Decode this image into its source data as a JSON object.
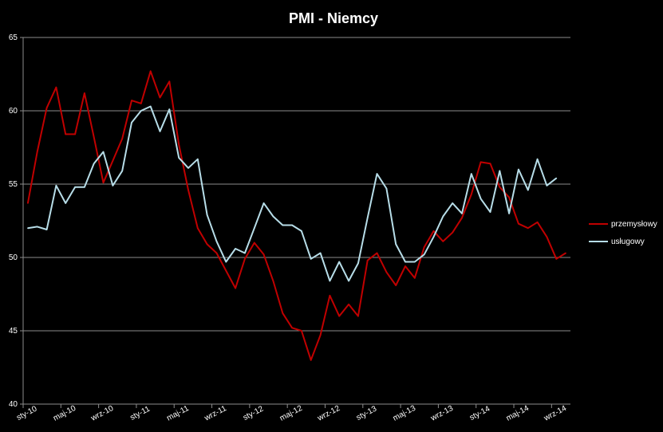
{
  "chart_data": {
    "type": "line",
    "title": "PMI - Niemcy",
    "ylim": [
      40,
      65
    ],
    "yticks": [
      40,
      45,
      50,
      55,
      60,
      65
    ],
    "grid": true,
    "legend_position": "right",
    "x": [
      "sty-10",
      "lut-10",
      "mar-10",
      "kwi-10",
      "maj-10",
      "cze-10",
      "lip-10",
      "sie-10",
      "wrz-10",
      "paź-10",
      "lis-10",
      "gru-10",
      "sty-11",
      "lut-11",
      "mar-11",
      "kwi-11",
      "maj-11",
      "cze-11",
      "lip-11",
      "sie-11",
      "wrz-11",
      "paź-11",
      "lis-11",
      "gru-11",
      "sty-12",
      "lut-12",
      "mar-12",
      "kwi-12",
      "maj-12",
      "cze-12",
      "lip-12",
      "sie-12",
      "wrz-12",
      "paź-12",
      "lis-12",
      "gru-12",
      "sty-13",
      "lut-13",
      "mar-13",
      "kwi-13",
      "maj-13",
      "cze-13",
      "lip-13",
      "sie-13",
      "wrz-13",
      "paź-13",
      "lis-13",
      "gru-13",
      "sty-14",
      "lut-14",
      "mar-14",
      "kwi-14",
      "maj-14",
      "cze-14",
      "lip-14",
      "sie-14",
      "wrz-14",
      "paź-14"
    ],
    "x_tick_labels": [
      "sty-10",
      "maj-10",
      "wrz-10",
      "sty-11",
      "maj-11",
      "wrz-11",
      "sty-12",
      "maj-12",
      "wrz-12",
      "sty-13",
      "maj-13",
      "wrz-13",
      "sty-14",
      "maj-14",
      "wrz-14"
    ],
    "series": [
      {
        "name": "przemysłowy",
        "color": "#c00000",
        "values": [
          53.7,
          57.2,
          60.2,
          61.6,
          58.4,
          58.4,
          61.2,
          58.2,
          55.1,
          56.6,
          58.1,
          60.7,
          60.5,
          62.7,
          60.9,
          62.0,
          57.7,
          54.6,
          52.0,
          50.9,
          50.3,
          49.1,
          47.9,
          49.9,
          51.0,
          50.2,
          48.4,
          46.2,
          45.2,
          45.0,
          43.0,
          44.7,
          47.4,
          46.0,
          46.8,
          46.0,
          49.8,
          50.3,
          49.0,
          48.1,
          49.4,
          48.6,
          50.7,
          51.8,
          51.1,
          51.7,
          52.7,
          54.3,
          56.5,
          56.4,
          54.8,
          54.1,
          52.3,
          52.0,
          52.4,
          51.4,
          49.9,
          50.3
        ]
      },
      {
        "name": "usługowy",
        "color": "#b7dde8",
        "values": [
          52.0,
          52.1,
          51.9,
          54.9,
          53.7,
          54.8,
          54.8,
          56.4,
          57.2,
          54.9,
          55.9,
          59.2,
          60.0,
          60.3,
          58.6,
          60.1,
          56.8,
          56.1,
          56.7,
          52.9,
          51.1,
          49.7,
          50.6,
          50.3,
          52.0,
          53.7,
          52.8,
          52.2,
          52.2,
          51.8,
          49.9,
          50.3,
          48.4,
          49.7,
          48.4,
          49.6,
          52.7,
          55.7,
          54.7,
          50.9,
          49.7,
          49.7,
          50.2,
          51.4,
          52.8,
          53.7,
          53.0,
          55.7,
          54.0,
          53.1,
          55.9,
          53.0,
          56.0,
          54.6,
          56.7,
          54.9,
          55.4,
          null
        ]
      }
    ]
  },
  "legend": {
    "items": [
      {
        "label": "przemysłowy",
        "color": "#c00000"
      },
      {
        "label": "usługowy",
        "color": "#b7dde8"
      }
    ]
  }
}
